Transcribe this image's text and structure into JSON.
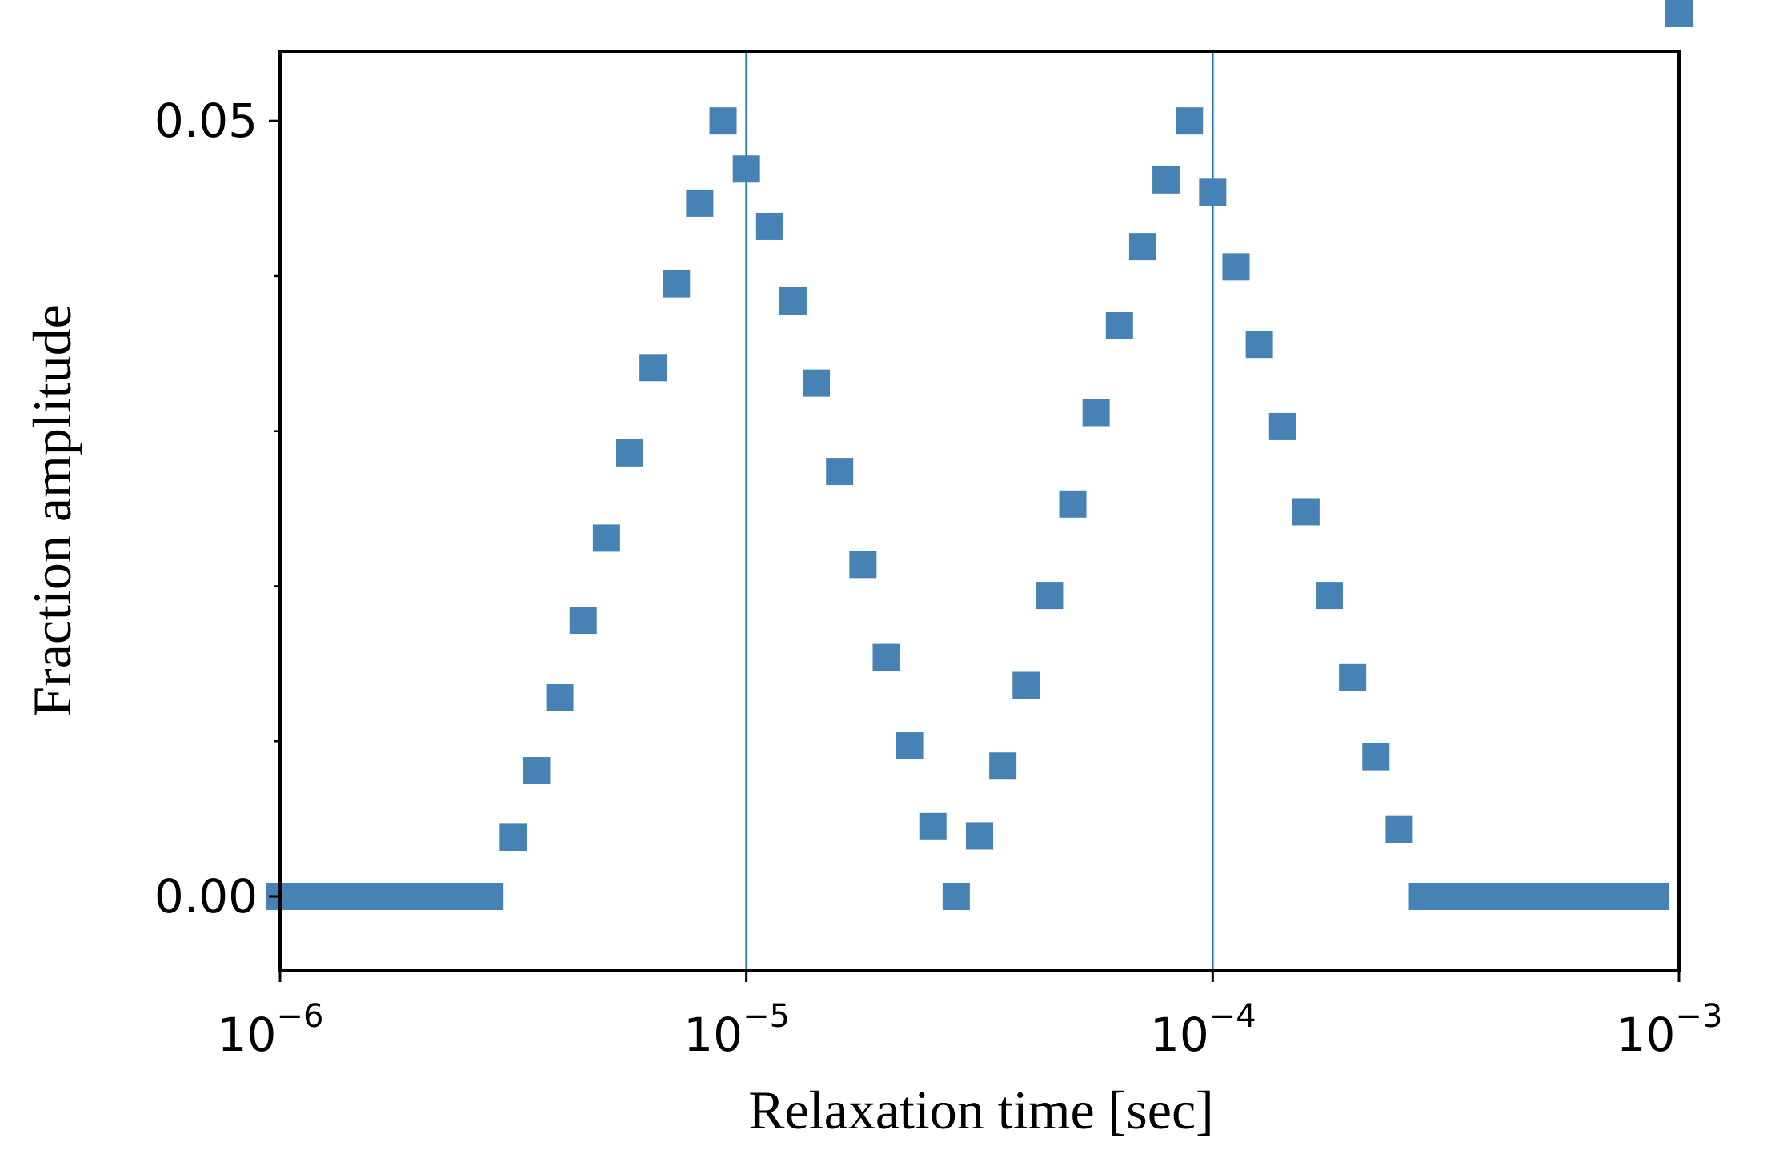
{
  "chart_data": {
    "type": "scatter",
    "title": "",
    "xlabel": "Relaxation time [sec]",
    "ylabel": "Fraction amplitude",
    "xscale": "log",
    "xlim": [
      1e-06,
      0.001
    ],
    "ylim": [
      -0.0048,
      0.0545
    ],
    "x_ticks": [
      {
        "base": "10",
        "exp": "−6",
        "value": 1e-06
      },
      {
        "base": "10",
        "exp": "−5",
        "value": 1e-05
      },
      {
        "base": "10",
        "exp": "−4",
        "value": 0.0001
      },
      {
        "base": "10",
        "exp": "−3",
        "value": 0.001
      }
    ],
    "y_ticks": [
      {
        "label": "0.00",
        "value": 0.0
      },
      {
        "label": "0.05",
        "value": 0.05
      }
    ],
    "y_minor_ticks": [
      0.01,
      0.02,
      0.03,
      0.04
    ],
    "vlines": [
      1e-05,
      0.0001
    ],
    "marker": "square",
    "color": "#4682b4",
    "line_color": "#1f77b4",
    "series": [
      {
        "name": "amplitude",
        "log10_x": [
          -6.0,
          -5.95,
          -5.9,
          -5.85,
          -5.8,
          -5.75,
          -5.7,
          -5.65,
          -5.6,
          -5.55,
          -5.5,
          -5.45,
          -5.4,
          -5.35,
          -5.3,
          -5.25,
          -5.2,
          -5.15,
          -5.1,
          -5.05,
          -5.0,
          -4.95,
          -4.9,
          -4.85,
          -4.8,
          -4.75,
          -4.7,
          -4.65,
          -4.6,
          -4.55,
          -4.5,
          -4.45,
          -4.4,
          -4.35,
          -4.3,
          -4.25,
          -4.2,
          -4.15,
          -4.1,
          -4.05,
          -4.0,
          -3.95,
          -3.9,
          -3.85,
          -3.8,
          -3.75,
          -3.7,
          -3.65,
          -3.6,
          -3.55,
          -3.5,
          -3.45,
          -3.4,
          -3.35,
          -3.3,
          -3.25,
          -3.2,
          -3.15,
          -3.1,
          -3.05,
          -3.0
        ],
        "values": [
          0.0,
          0.0,
          0.0,
          0.0,
          0.0,
          0.0,
          0.0,
          0.0,
          0.0,
          0.0,
          0.0038,
          0.0081,
          0.0128,
          0.0178,
          0.0231,
          0.0286,
          0.0341,
          0.0395,
          0.0447,
          0.05,
          0.0469,
          0.0432,
          0.0384,
          0.0331,
          0.0274,
          0.0214,
          0.0154,
          0.0097,
          0.0045,
          0.0,
          0.0039,
          0.0084,
          0.0136,
          0.0194,
          0.0253,
          0.0312,
          0.0368,
          0.0419,
          0.0462,
          0.05,
          0.0454,
          0.0406,
          0.0356,
          0.0303,
          0.0248,
          0.0194,
          0.0141,
          0.009,
          0.0043,
          0.0,
          0.0,
          0.0,
          0.0,
          0.0,
          0.0,
          0.0,
          0.0,
          0.0,
          0.0,
          0.0
        ]
      }
    ]
  }
}
